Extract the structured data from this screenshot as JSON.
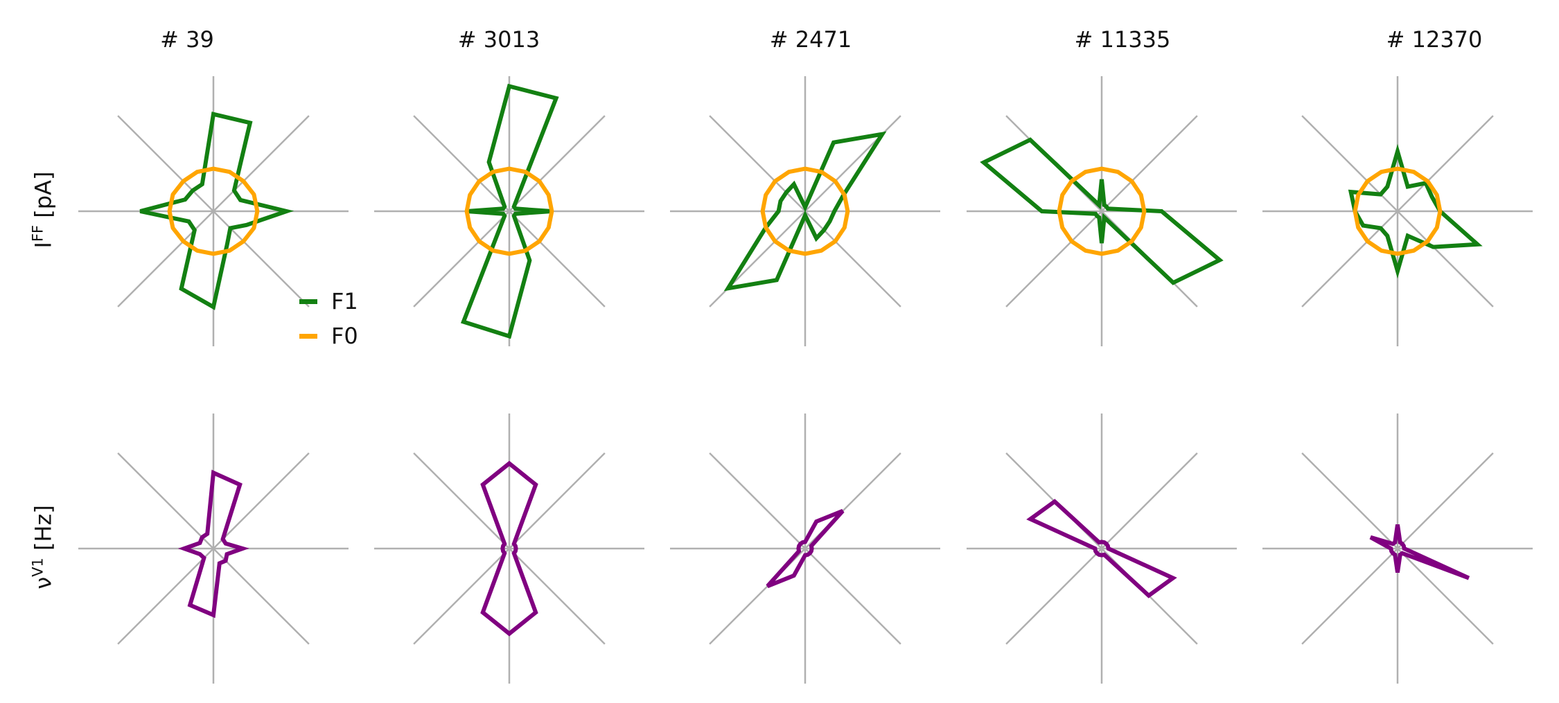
{
  "chart_data": {
    "type": "polar-line",
    "angles_deg": [
      0,
      22.5,
      45,
      67.5,
      90,
      112.5,
      135,
      157.5,
      180,
      202.5,
      225,
      247.5,
      270,
      292.5,
      315,
      337.5
    ],
    "rlim": [
      0,
      1
    ],
    "grid": true,
    "legend": {
      "placement": "bottom-right of first panel",
      "entries": [
        "F1",
        "F0"
      ]
    },
    "colors": {
      "F1": "#138012",
      "F0": "#ffa500",
      "rate": "#800080",
      "grid": "#b0b0b0"
    },
    "rows": [
      {
        "label_main": "I",
        "label_sup": "FF",
        "label_rest": " [pA]",
        "series_names": [
          "F1",
          "F0"
        ]
      },
      {
        "label_main": "ν",
        "label_sup": "V1",
        "label_rest": " [Hz]",
        "series_names": [
          "rate"
        ]
      }
    ],
    "columns": [
      {
        "title": "# 39",
        "F1": [
          0.55,
          0.22,
          0.22,
          0.72,
          0.73,
          0.22,
          0.22,
          0.23,
          0.55,
          0.2,
          0.2,
          0.63,
          0.72,
          0.27,
          0.18,
          0.27
        ],
        "F0": [
          0.33,
          0.33,
          0.32,
          0.32,
          0.32,
          0.32,
          0.32,
          0.33,
          0.33,
          0.33,
          0.32,
          0.32,
          0.32,
          0.32,
          0.32,
          0.33
        ],
        "rate": [
          0.22,
          0.1,
          0.1,
          0.52,
          0.57,
          0.12,
          0.12,
          0.11,
          0.22,
          0.11,
          0.1,
          0.46,
          0.5,
          0.12,
          0.13,
          0.11
        ]
      },
      {
        "title": "# 3013",
        "F1": [
          0.32,
          0.05,
          0.05,
          0.92,
          0.94,
          0.4,
          0.05,
          0.05,
          0.32,
          0.05,
          0.05,
          0.9,
          0.94,
          0.4,
          0.05,
          0.05
        ],
        "F0": [
          0.32,
          0.32,
          0.32,
          0.32,
          0.32,
          0.32,
          0.32,
          0.32,
          0.32,
          0.32,
          0.32,
          0.32,
          0.32,
          0.32,
          0.32,
          0.32
        ],
        "rate": [
          0.05,
          0.05,
          0.05,
          0.52,
          0.64,
          0.52,
          0.05,
          0.05,
          0.05,
          0.05,
          0.05,
          0.52,
          0.64,
          0.52,
          0.05,
          0.05
        ]
      },
      {
        "title": "# 2471",
        "F1": [
          0.22,
          0.31,
          0.82,
          0.56,
          0.03,
          0.22,
          0.2,
          0.2,
          0.2,
          0.32,
          0.82,
          0.56,
          0.03,
          0.22,
          0.2,
          0.2
        ],
        "F0": [
          0.32,
          0.32,
          0.32,
          0.32,
          0.32,
          0.32,
          0.32,
          0.32,
          0.32,
          0.32,
          0.32,
          0.32,
          0.32,
          0.32,
          0.32,
          0.32
        ],
        "rate": [
          0.05,
          0.05,
          0.4,
          0.22,
          0.05,
          0.05,
          0.05,
          0.05,
          0.05,
          0.05,
          0.4,
          0.22,
          0.05,
          0.05,
          0.05,
          0.05
        ]
      },
      {
        "title": "# 11335",
        "F1": [
          0.45,
          0.05,
          0.05,
          0.05,
          0.24,
          0.05,
          0.76,
          0.96,
          0.45,
          0.05,
          0.05,
          0.05,
          0.24,
          0.05,
          0.76,
          0.96
        ],
        "F0": [
          0.32,
          0.32,
          0.32,
          0.32,
          0.32,
          0.32,
          0.32,
          0.32,
          0.32,
          0.32,
          0.32,
          0.32,
          0.32,
          0.32,
          0.32,
          0.32
        ],
        "rate": [
          0.05,
          0.05,
          0.05,
          0.05,
          0.05,
          0.05,
          0.5,
          0.58,
          0.05,
          0.05,
          0.05,
          0.05,
          0.05,
          0.05,
          0.5,
          0.58
        ]
      },
      {
        "title": "# 12370",
        "F1": [
          0.32,
          0.28,
          0.3,
          0.2,
          0.45,
          0.2,
          0.18,
          0.38,
          0.32,
          0.28,
          0.18,
          0.2,
          0.45,
          0.2,
          0.38,
          0.65
        ],
        "F0": [
          0.32,
          0.32,
          0.32,
          0.32,
          0.32,
          0.32,
          0.32,
          0.32,
          0.32,
          0.32,
          0.32,
          0.32,
          0.32,
          0.32,
          0.32,
          0.32
        ],
        "rate": [
          0.05,
          0.05,
          0.05,
          0.05,
          0.18,
          0.05,
          0.05,
          0.22,
          0.05,
          0.05,
          0.05,
          0.05,
          0.18,
          0.05,
          0.05,
          0.58
        ]
      }
    ]
  }
}
